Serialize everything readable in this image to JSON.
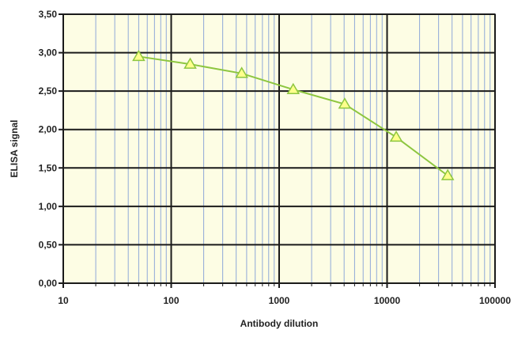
{
  "chart_data": {
    "type": "line",
    "title": "",
    "xlabel": "Antibody dilution",
    "ylabel": "ELISA signal",
    "x_scale": "log",
    "xlim": [
      10,
      100000
    ],
    "ylim": [
      0,
      3.5
    ],
    "x_ticks": [
      10,
      100,
      1000,
      10000,
      100000
    ],
    "x_tick_labels": [
      "10",
      "100",
      "1000",
      "10000",
      "100000"
    ],
    "y_ticks": [
      0,
      0.5,
      1.0,
      1.5,
      2.0,
      2.5,
      3.0,
      3.5
    ],
    "y_tick_labels": [
      "0,00",
      "0,50",
      "1,00",
      "1,50",
      "2,00",
      "2,50",
      "3,00",
      "3,50"
    ],
    "grid": true,
    "legend": "none",
    "colors": {
      "plot_background": "#fdfde4",
      "major_grid": "#1a1a1a",
      "minor_grid": "#8fa8d8",
      "line": "#8dc63f",
      "marker_fill": "#ffff8c",
      "marker_stroke": "#8dc63f"
    },
    "marker": "triangle",
    "series": [
      {
        "x": [
          50,
          150,
          450,
          1350,
          4050,
          12150,
          36450
        ],
        "y": [
          2.95,
          2.85,
          2.73,
          2.52,
          2.33,
          1.9,
          1.4
        ]
      }
    ]
  }
}
